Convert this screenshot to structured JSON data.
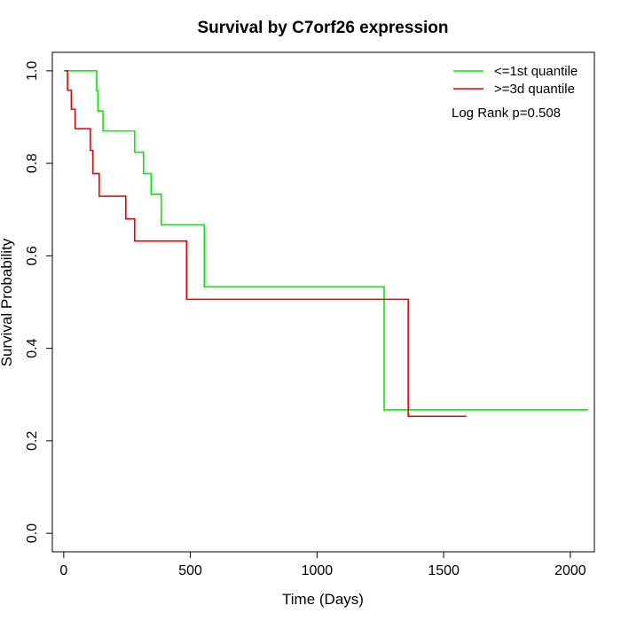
{
  "chart_data": {
    "type": "line",
    "title": "Survival by C7orf26 expression",
    "xlabel": "Time (Days)",
    "ylabel": "Survival Probability",
    "xlim": [
      -45,
      2095
    ],
    "ylim": [
      -0.04,
      1.04
    ],
    "xticks": [
      0,
      500,
      1000,
      1500,
      2000
    ],
    "xtick_labels": [
      "0",
      "500",
      "1000",
      "1500",
      "2000"
    ],
    "yticks": [
      0.0,
      0.2,
      0.4,
      0.6,
      0.8,
      1.0
    ],
    "ytick_labels": [
      "0.0",
      "0.2",
      "0.4",
      "0.6",
      "0.8",
      "1.0"
    ],
    "grid": false,
    "legend_position": "top-right",
    "annotation": "Log Rank p=0.508",
    "series": [
      {
        "name": "<=1st quantile",
        "color": "#00ee00",
        "step": true,
        "points": [
          [
            0,
            1.0
          ],
          [
            130,
            1.0
          ],
          [
            130,
            0.957
          ],
          [
            135,
            0.957
          ],
          [
            135,
            0.913
          ],
          [
            155,
            0.913
          ],
          [
            155,
            0.87
          ],
          [
            280,
            0.87
          ],
          [
            280,
            0.824
          ],
          [
            315,
            0.824
          ],
          [
            315,
            0.778
          ],
          [
            345,
            0.778
          ],
          [
            345,
            0.733
          ],
          [
            385,
            0.733
          ],
          [
            385,
            0.667
          ],
          [
            555,
            0.667
          ],
          [
            555,
            0.533
          ],
          [
            1265,
            0.533
          ],
          [
            1265,
            0.267
          ],
          [
            2070,
            0.267
          ]
        ]
      },
      {
        "name": ">=3d quantile",
        "color": "#ee0000",
        "step": true,
        "points": [
          [
            5,
            1.0
          ],
          [
            15,
            1.0
          ],
          [
            15,
            0.958
          ],
          [
            30,
            0.958
          ],
          [
            30,
            0.917
          ],
          [
            45,
            0.917
          ],
          [
            45,
            0.875
          ],
          [
            105,
            0.875
          ],
          [
            105,
            0.828
          ],
          [
            115,
            0.828
          ],
          [
            115,
            0.778
          ],
          [
            140,
            0.778
          ],
          [
            140,
            0.729
          ],
          [
            245,
            0.729
          ],
          [
            245,
            0.68
          ],
          [
            280,
            0.68
          ],
          [
            280,
            0.632
          ],
          [
            485,
            0.632
          ],
          [
            485,
            0.506
          ],
          [
            1360,
            0.506
          ],
          [
            1360,
            0.253
          ],
          [
            1590,
            0.253
          ]
        ]
      }
    ]
  }
}
